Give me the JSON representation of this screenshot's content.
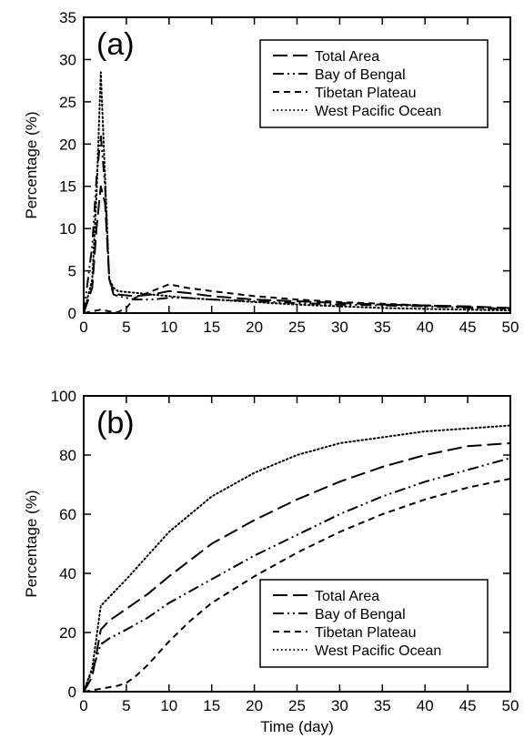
{
  "chart_data": [
    {
      "type": "line",
      "panel_label": "(a)",
      "xlabel": "",
      "ylabel": "Percentage (%)",
      "xlim": [
        0,
        50
      ],
      "ylim": [
        0,
        35
      ],
      "xticks": [
        0,
        5,
        10,
        15,
        20,
        25,
        30,
        35,
        40,
        45,
        50
      ],
      "yticks": [
        0,
        5,
        10,
        15,
        20,
        25,
        30,
        35
      ],
      "legend_position": "top-right",
      "series": [
        {
          "name": "Total Area",
          "dash": "long-dash",
          "x": [
            0,
            1,
            1.5,
            2,
            2.5,
            3,
            3.5,
            4,
            6,
            8,
            10,
            12,
            15,
            20,
            25,
            30,
            35,
            40,
            45,
            50
          ],
          "y": [
            0,
            3,
            10,
            15,
            13,
            4,
            2.5,
            2.2,
            2.0,
            2.2,
            2.6,
            2.4,
            2.0,
            1.6,
            1.4,
            1.2,
            1.0,
            0.9,
            0.8,
            0.6
          ]
        },
        {
          "name": "Bay of Bengal",
          "dash": "dash-dot-dot",
          "x": [
            0,
            1,
            1.5,
            2,
            2.5,
            3,
            3.5,
            4,
            6,
            8,
            10,
            12,
            15,
            20,
            25,
            30,
            35,
            40,
            45,
            50
          ],
          "y": [
            0,
            8,
            16,
            21,
            15,
            4,
            2.2,
            2.0,
            1.6,
            1.6,
            1.8,
            1.8,
            1.6,
            1.4,
            1.2,
            1.0,
            0.9,
            0.8,
            0.6,
            0.5
          ]
        },
        {
          "name": "Tibetan Plateau",
          "dash": "short-dash",
          "x": [
            0,
            1,
            2,
            3,
            4,
            5,
            6,
            8,
            10,
            12,
            15,
            20,
            25,
            30,
            35,
            40,
            45,
            50
          ],
          "y": [
            0,
            0.2,
            0.4,
            0.2,
            0.1,
            0.6,
            1.8,
            2.6,
            3.4,
            3.0,
            2.6,
            2.0,
            1.6,
            1.3,
            1.1,
            0.9,
            0.7,
            0.5
          ]
        },
        {
          "name": "West Pacific Ocean",
          "dash": "dotted",
          "x": [
            0,
            1,
            1.5,
            2,
            2.5,
            3,
            3.5,
            4,
            6,
            8,
            10,
            12,
            15,
            20,
            25,
            30,
            35,
            40,
            45,
            50
          ],
          "y": [
            0,
            4,
            14,
            28.5,
            16,
            4,
            3.0,
            2.6,
            2.4,
            2.2,
            2.0,
            1.8,
            1.6,
            1.3,
            1.0,
            0.8,
            0.6,
            0.5,
            0.4,
            0.3
          ]
        }
      ]
    },
    {
      "type": "line",
      "panel_label": "(b)",
      "xlabel": "Time (day)",
      "ylabel": "Percentage (%)",
      "xlim": [
        0,
        50
      ],
      "ylim": [
        0,
        100
      ],
      "xticks": [
        0,
        5,
        10,
        15,
        20,
        25,
        30,
        35,
        40,
        45,
        50
      ],
      "yticks": [
        0,
        20,
        40,
        60,
        80,
        100
      ],
      "legend_position": "bottom-right",
      "series": [
        {
          "name": "Total Area",
          "dash": "long-dash",
          "x": [
            0,
            1,
            2,
            3,
            5,
            7.5,
            10,
            15,
            20,
            25,
            30,
            35,
            40,
            45,
            50
          ],
          "y": [
            0,
            5,
            21,
            24,
            28,
            33,
            39,
            50,
            58,
            65,
            71,
            76,
            80,
            83,
            84
          ]
        },
        {
          "name": "Bay of Bengal",
          "dash": "dash-dot-dot",
          "x": [
            0,
            1,
            2,
            3,
            5,
            7.5,
            10,
            15,
            20,
            25,
            30,
            35,
            40,
            45,
            50
          ],
          "y": [
            0,
            7,
            16,
            18,
            21,
            25,
            30,
            38,
            46,
            53,
            60,
            66,
            71,
            75,
            79
          ]
        },
        {
          "name": "Tibetan Plateau",
          "dash": "short-dash",
          "x": [
            0,
            1,
            2,
            3,
            4,
            5,
            6,
            7.5,
            10,
            12.5,
            15,
            20,
            25,
            30,
            35,
            40,
            45,
            50
          ],
          "y": [
            0,
            0.5,
            1,
            1.5,
            2,
            3,
            5,
            9,
            17,
            24,
            30,
            39,
            47,
            54,
            60,
            65,
            69,
            72
          ]
        },
        {
          "name": "West Pacific Ocean",
          "dash": "dotted",
          "x": [
            0,
            1,
            2,
            3,
            5,
            7.5,
            10,
            15,
            20,
            25,
            30,
            35,
            40,
            45,
            50
          ],
          "y": [
            0,
            8,
            29,
            32,
            38,
            46,
            54,
            66,
            74,
            80,
            84,
            86,
            88,
            89,
            90
          ]
        }
      ]
    }
  ]
}
